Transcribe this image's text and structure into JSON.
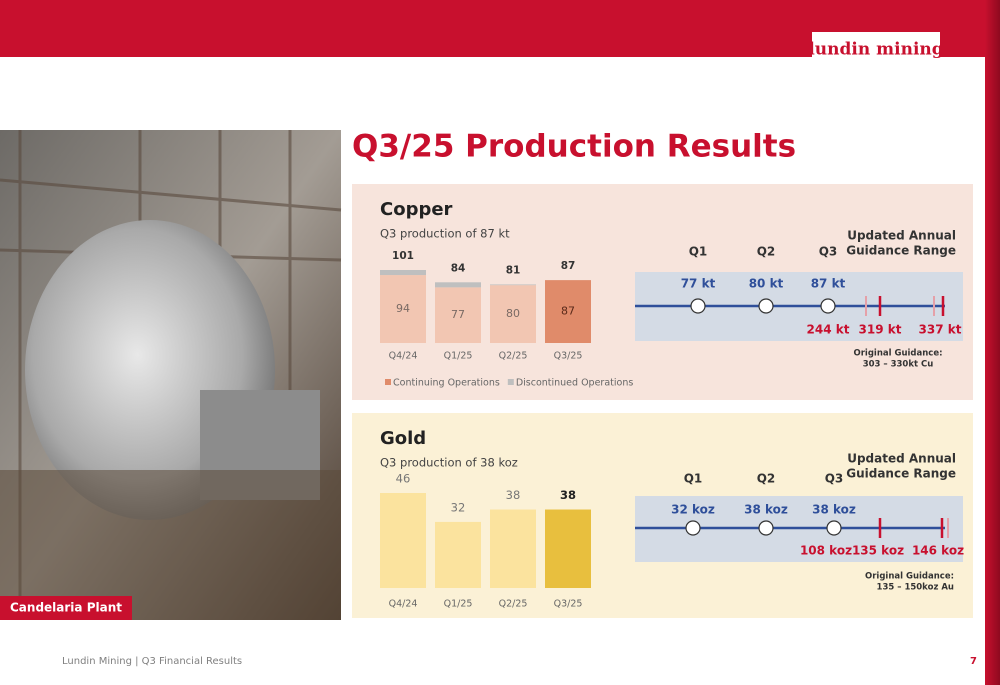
{
  "header": {
    "logo": "lundin mining",
    "title": "Q3/25 Production Results"
  },
  "photo_caption": "Candelaria Plant",
  "chart_data": [
    {
      "type": "bar",
      "stacked": true,
      "title": "Copper",
      "subtitle": "Q3 production of 87 kt",
      "categories": [
        "Q4/24",
        "Q1/25",
        "Q2/25",
        "Q3/25"
      ],
      "series": [
        {
          "name": "Continuing Operations",
          "color": "#e08b6a",
          "colors": [
            "#f2c6b2",
            "#f2c6b2",
            "#f2c6b2",
            "#e08b6a"
          ],
          "values": [
            94,
            77,
            80,
            87
          ]
        },
        {
          "name": "Discontinued Operations",
          "color": "#bfbfbf",
          "values": [
            7,
            7,
            1,
            0
          ]
        }
      ],
      "totals": [
        101,
        84,
        81,
        87
      ],
      "legend": "bottom"
    },
    {
      "type": "bar",
      "title": "Gold",
      "subtitle": "Q3 production of 38 koz",
      "categories": [
        "Q4/24",
        "Q1/25",
        "Q2/25",
        "Q3/25"
      ],
      "values": [
        46,
        32,
        38,
        38
      ],
      "colors": [
        "#fbe39e",
        "#fbe39e",
        "#fbe39e",
        "#e8bf3e"
      ]
    }
  ],
  "guidance": [
    {
      "heading": [
        "Updated Annual",
        "Guidance Range"
      ],
      "periods": [
        "Q1",
        "Q2",
        "Q3"
      ],
      "quarter_values": [
        "77 kt",
        "80 kt",
        "87 kt"
      ],
      "cumulative": "244 kt",
      "range": [
        "319 kt",
        "337 kt"
      ],
      "original": [
        "Original Guidance:",
        "303 – 330kt Cu"
      ]
    },
    {
      "heading": [
        "Updated Annual",
        "Guidance Range"
      ],
      "periods": [
        "Q1",
        "Q2",
        "Q3"
      ],
      "quarter_values": [
        "32 koz",
        "38 koz",
        "38 koz"
      ],
      "cumulative": "108 koz",
      "range": [
        "135 koz",
        "146 koz"
      ],
      "original": [
        "Original Guidance:",
        "135 – 150koz Au"
      ]
    }
  ],
  "footer": {
    "text": "Lundin Mining | Q3 Financial Results",
    "page": "7"
  }
}
